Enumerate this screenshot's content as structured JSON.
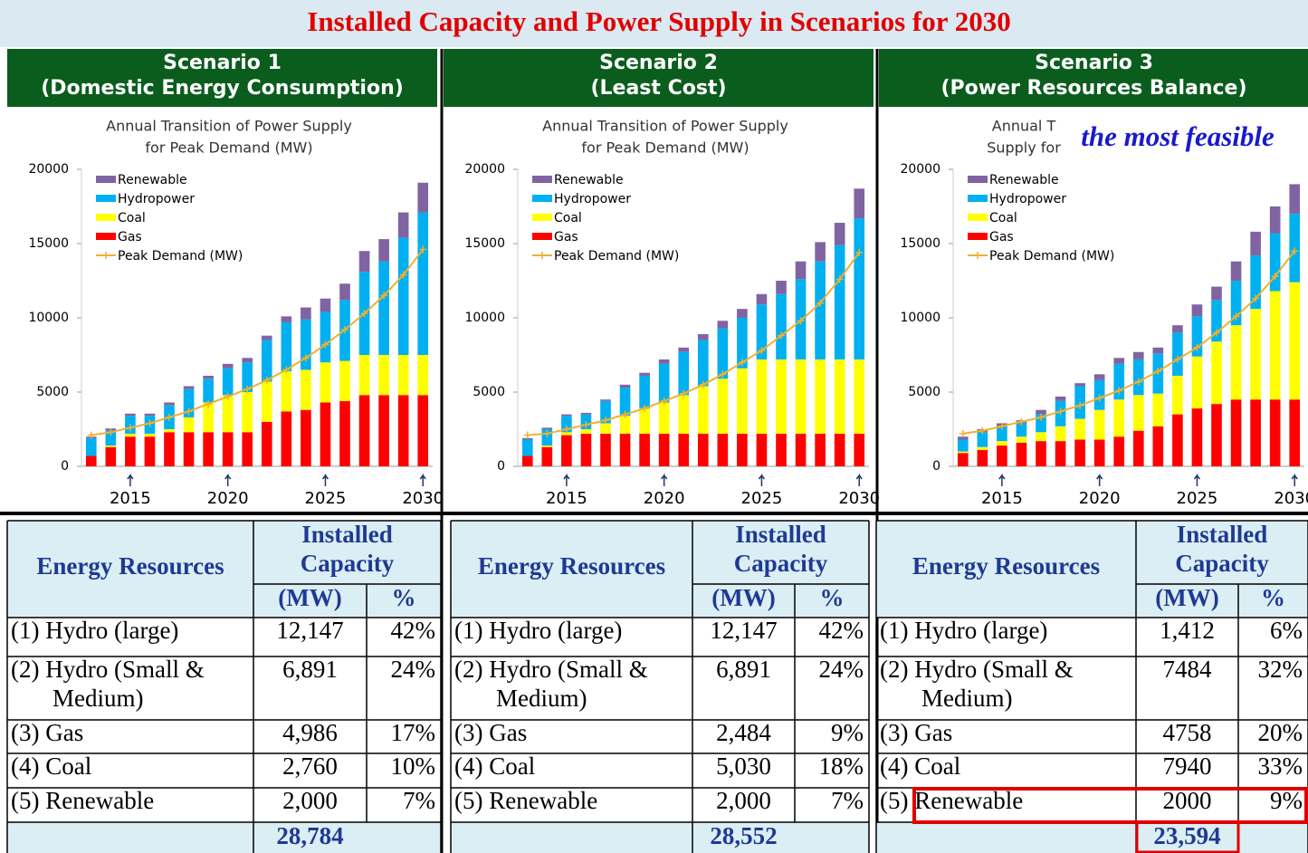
{
  "title": "Installed Capacity and Power Supply in Scenarios for 2030",
  "scenarios": [
    {
      "name": "Scenario 1",
      "subtitle": "(Domestic Energy Consumption)"
    },
    {
      "name": "Scenario 2",
      "subtitle": "(Least Cost)"
    },
    {
      "name": "Scenario 3",
      "subtitle": "(Power Resources Balance)"
    }
  ],
  "chart_data": [
    {
      "type": "bar",
      "stacked": true,
      "legend": "upper left",
      "title": [
        "Annual Transition of Power Supply",
        "for Peak Demand (MW)"
      ],
      "categories": [
        null,
        null,
        "2015",
        null,
        null,
        null,
        null,
        "2020",
        null,
        null,
        null,
        null,
        "2025",
        null,
        null,
        null,
        null,
        "2030"
      ],
      "ylim": [
        0,
        20000
      ],
      "yticks": [
        0,
        5000,
        10000,
        15000,
        20000
      ],
      "series": [
        {
          "name": "Renewable",
          "color": "#8064a2",
          "values": [
            100,
            150,
            150,
            150,
            200,
            200,
            200,
            300,
            300,
            300,
            400,
            800,
            900,
            1100,
            1400,
            1500,
            1700,
            2000
          ]
        },
        {
          "name": "Hydropower",
          "color": "#00b0f0",
          "values": [
            1200,
            1000,
            1200,
            1200,
            1600,
            1900,
            1600,
            1800,
            2000,
            2800,
            3300,
            3400,
            3400,
            4100,
            5600,
            6300,
            7900,
            9600
          ]
        },
        {
          "name": "Coal",
          "color": "#ffff00",
          "values": [
            0,
            100,
            200,
            200,
            200,
            1000,
            2000,
            2500,
            2700,
            2700,
            2700,
            2700,
            2700,
            2700,
            2700,
            2700,
            2700,
            2700
          ]
        },
        {
          "name": "Gas",
          "color": "#ff0000",
          "values": [
            700,
            1300,
            2000,
            2000,
            2300,
            2300,
            2300,
            2300,
            2300,
            3000,
            3700,
            3800,
            4300,
            4400,
            4800,
            4800,
            4800,
            4800
          ]
        },
        {
          "name": "Peak Demand (MW)",
          "type": "line",
          "color": "#f0b030",
          "values": [
            2100,
            2300,
            2600,
            2900,
            3300,
            3700,
            4200,
            4700,
            5200,
            5800,
            6500,
            7300,
            8200,
            9200,
            10300,
            11500,
            12900,
            14600
          ]
        }
      ]
    },
    {
      "type": "bar",
      "stacked": true,
      "legend": "upper left",
      "title": [
        "Annual Transition of Power Supply",
        "for Peak Demand (MW)"
      ],
      "categories": [
        null,
        null,
        "2015",
        null,
        null,
        null,
        null,
        "2020",
        null,
        null,
        null,
        null,
        "2025",
        null,
        null,
        null,
        null,
        "2030"
      ],
      "ylim": [
        0,
        20000
      ],
      "yticks": [
        0,
        5000,
        10000,
        15000,
        20000
      ],
      "series": [
        {
          "name": "Renewable",
          "color": "#8064a2",
          "values": [
            100,
            100,
            100,
            100,
            100,
            200,
            200,
            300,
            300,
            400,
            500,
            600,
            700,
            900,
            1200,
            1300,
            1500,
            2000
          ]
        },
        {
          "name": "Hydropower",
          "color": "#00b0f0",
          "values": [
            1100,
            1100,
            1100,
            1000,
            1500,
            1900,
            2200,
            2600,
            2900,
            3100,
            3400,
            3400,
            3700,
            4400,
            5400,
            6600,
            7700,
            9500
          ]
        },
        {
          "name": "Coal",
          "color": "#ffff00",
          "values": [
            0,
            100,
            200,
            300,
            700,
            1200,
            1700,
            2100,
            2600,
            3200,
            3700,
            4400,
            5000,
            5000,
            5000,
            5000,
            5000,
            5000
          ]
        },
        {
          "name": "Gas",
          "color": "#ff0000",
          "values": [
            700,
            1300,
            2100,
            2200,
            2200,
            2200,
            2200,
            2200,
            2200,
            2200,
            2200,
            2200,
            2200,
            2200,
            2200,
            2200,
            2200,
            2200
          ]
        },
        {
          "name": "Peak Demand (MW)",
          "type": "line",
          "color": "#f0b030",
          "values": [
            2100,
            2200,
            2500,
            2800,
            3100,
            3500,
            3900,
            4400,
            4900,
            5500,
            6200,
            7000,
            7800,
            8800,
            9800,
            11000,
            12600,
            14400
          ]
        }
      ]
    },
    {
      "type": "bar",
      "stacked": true,
      "legend": "upper left",
      "title": [
        "Annual T",
        "Supply for"
      ],
      "annotation": "the most feasible",
      "categories": [
        null,
        null,
        "2015",
        null,
        null,
        null,
        null,
        "2020",
        null,
        null,
        null,
        null,
        "2025",
        null,
        null,
        null,
        null,
        "2030"
      ],
      "ylim": [
        0,
        20000
      ],
      "yticks": [
        0,
        5000,
        10000,
        15000,
        20000
      ],
      "series": [
        {
          "name": "Renewable",
          "color": "#8064a2",
          "values": [
            200,
            200,
            200,
            200,
            300,
            300,
            200,
            400,
            400,
            500,
            400,
            500,
            800,
            900,
            1300,
            1600,
            1800,
            2000
          ]
        },
        {
          "name": "Hydropower",
          "color": "#00b0f0",
          "values": [
            800,
            1000,
            1000,
            900,
            1200,
            1700,
            2200,
            2000,
            2400,
            2400,
            2700,
            2900,
            2700,
            2800,
            3000,
            3600,
            3900,
            4600
          ]
        },
        {
          "name": "Coal",
          "color": "#ffff00",
          "values": [
            100,
            200,
            300,
            400,
            600,
            1000,
            1400,
            2000,
            2500,
            2400,
            2200,
            2600,
            3500,
            4200,
            5000,
            6100,
            7300,
            7900
          ]
        },
        {
          "name": "Gas",
          "color": "#ff0000",
          "values": [
            900,
            1100,
            1400,
            1600,
            1700,
            1700,
            1800,
            1800,
            2000,
            2400,
            2700,
            3500,
            3900,
            4200,
            4500,
            4500,
            4500,
            4500
          ]
        },
        {
          "name": "Peak Demand (MW)",
          "type": "line",
          "color": "#f0b030",
          "values": [
            2200,
            2400,
            2700,
            3000,
            3300,
            3700,
            4100,
            4600,
            5100,
            5700,
            6400,
            7200,
            8000,
            9000,
            10100,
            11300,
            12800,
            14500
          ]
        }
      ]
    }
  ],
  "tables": [
    {
      "header": {
        "resource": "Energy Resources",
        "capacity": [
          "Installed",
          "Capacity"
        ],
        "mw": "(MW)",
        "pct": "%"
      },
      "rows": [
        {
          "name": [
            "(1) Hydro (large)"
          ],
          "mw": "12,147",
          "pct": "42%"
        },
        {
          "name": [
            "(2) Hydro (Small &",
            "Medium)"
          ],
          "mw": "6,891",
          "pct": "24%"
        },
        {
          "name": [
            "(3) Gas"
          ],
          "mw": "4,986",
          "pct": "17%"
        },
        {
          "name": [
            "(4) Coal"
          ],
          "mw": "2,760",
          "pct": "10%"
        },
        {
          "name": [
            "(5) Renewable"
          ],
          "mw": "2,000",
          "pct": "7%"
        }
      ],
      "total": "28,784"
    },
    {
      "header": {
        "resource": "Energy Resources",
        "capacity": [
          "Installed",
          "Capacity"
        ],
        "mw": "(MW)",
        "pct": "%"
      },
      "rows": [
        {
          "name": [
            "(1) Hydro (large)"
          ],
          "mw": "12,147",
          "pct": "42%"
        },
        {
          "name": [
            "(2) Hydro (Small &",
            "Medium)"
          ],
          "mw": "6,891",
          "pct": "24%"
        },
        {
          "name": [
            "(3) Gas"
          ],
          "mw": "2,484",
          "pct": "9%"
        },
        {
          "name": [
            "(4) Coal"
          ],
          "mw": "5,030",
          "pct": "18%"
        },
        {
          "name": [
            "(5) Renewable"
          ],
          "mw": "2,000",
          "pct": "7%"
        }
      ],
      "total": "28,552"
    },
    {
      "header": {
        "resource": "Energy Resources",
        "capacity": [
          "Installed",
          "Capacity"
        ],
        "mw": "(MW)",
        "pct": "%"
      },
      "rows": [
        {
          "name": [
            "(1) Hydro (large)"
          ],
          "mw": "1,412",
          "pct": "6%"
        },
        {
          "name": [
            "(2) Hydro (Small &",
            "Medium)"
          ],
          "mw": "7484",
          "pct": "32%"
        },
        {
          "name": [
            "(3) Gas"
          ],
          "mw": "4758",
          "pct": "20%"
        },
        {
          "name": [
            "(4) Coal"
          ],
          "mw": "7940",
          "pct": "33%"
        },
        {
          "name": [
            "(5) Renewable"
          ],
          "mw": "2000",
          "pct": "9%"
        }
      ],
      "total": "23,594"
    }
  ]
}
